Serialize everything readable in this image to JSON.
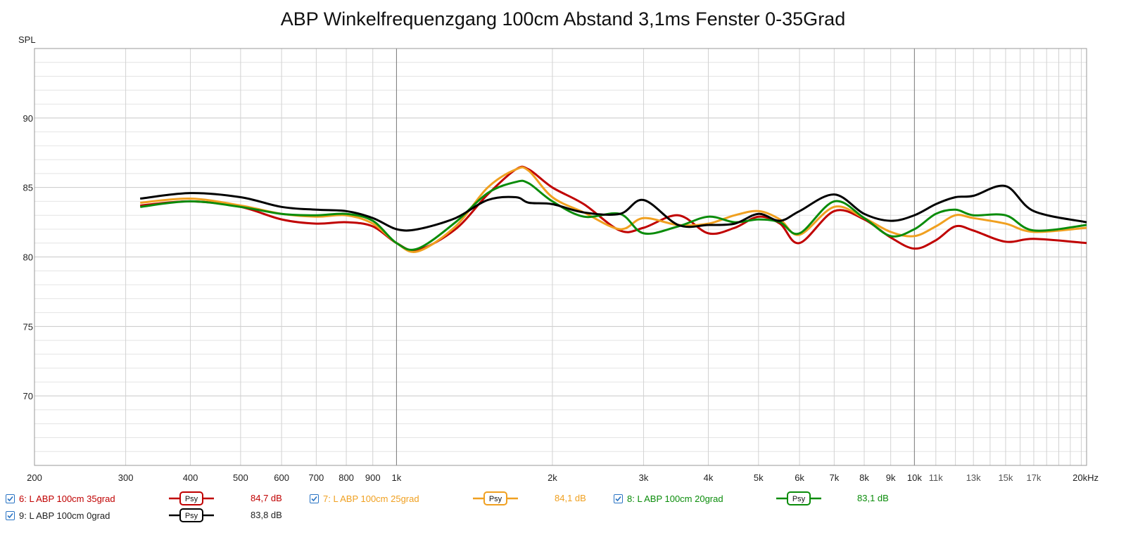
{
  "chart_data": {
    "type": "line",
    "title": "ABP Winkelfrequenzgang 100cm Abstand 3,1ms Fenster 0-35Grad",
    "ylabel": "SPL",
    "xlabel": "",
    "xscale": "log",
    "xlim": [
      200,
      21500
    ],
    "ylim": [
      65,
      95
    ],
    "y_ticks": [
      "70",
      "75",
      "80",
      "85",
      "90"
    ],
    "x_ticks": [
      {
        "label": "200",
        "value": 200
      },
      {
        "label": "300",
        "value": 300
      },
      {
        "label": "400",
        "value": 400
      },
      {
        "label": "500",
        "value": 500
      },
      {
        "label": "600",
        "value": 600
      },
      {
        "label": "700",
        "value": 700
      },
      {
        "label": "800",
        "value": 800
      },
      {
        "label": "900",
        "value": 900
      },
      {
        "label": "1k",
        "value": 1000
      },
      {
        "label": "2k",
        "value": 2000
      },
      {
        "label": "3k",
        "value": 3000
      },
      {
        "label": "4k",
        "value": 4000
      },
      {
        "label": "5k",
        "value": 5000
      },
      {
        "label": "6k",
        "value": 6000
      },
      {
        "label": "7k",
        "value": 7000
      },
      {
        "label": "8k",
        "value": 8000
      },
      {
        "label": "9k",
        "value": 9000
      },
      {
        "label": "10k",
        "value": 10000
      },
      {
        "label": "11k",
        "value": 11000
      },
      {
        "label": "13k",
        "value": 13000
      },
      {
        "label": "15k",
        "value": 15000
      },
      {
        "label": "17k",
        "value": 17000
      },
      {
        "label": "20kHz",
        "value": 20000
      }
    ],
    "grid": true,
    "series": [
      {
        "name": "6: L ABP 100cm 35grad",
        "color": "#c00000",
        "psy_label": "Psy",
        "value_label": "84,7 dB",
        "x": [
          320,
          400,
          500,
          600,
          700,
          800,
          900,
          1000,
          1100,
          1300,
          1500,
          1700,
          1800,
          2000,
          2300,
          2700,
          3000,
          3500,
          4000,
          4500,
          5000,
          5500,
          6000,
          7000,
          8000,
          9000,
          10000,
          11000,
          12000,
          13000,
          15000,
          17000,
          21500
        ],
        "y": [
          83.7,
          84.0,
          83.6,
          82.7,
          82.4,
          82.5,
          82.2,
          81.0,
          80.5,
          82.0,
          84.5,
          86.3,
          86.3,
          85.0,
          83.8,
          81.9,
          82.1,
          83.0,
          81.7,
          82.1,
          82.9,
          82.4,
          81.0,
          83.3,
          82.7,
          81.4,
          80.6,
          81.2,
          82.2,
          81.9,
          81.1,
          81.3,
          81.0
        ]
      },
      {
        "name": "7: L ABP 100cm 25grad",
        "color": "#f0a020",
        "psy_label": "Psy",
        "value_label": "84,1 dB",
        "x": [
          320,
          400,
          500,
          600,
          700,
          800,
          900,
          1000,
          1100,
          1300,
          1500,
          1700,
          1800,
          2000,
          2300,
          2700,
          3000,
          3500,
          4000,
          4500,
          5000,
          5500,
          6000,
          7000,
          8000,
          9000,
          10000,
          11000,
          12000,
          13000,
          15000,
          17000,
          21500
        ],
        "y": [
          83.9,
          84.2,
          83.7,
          83.1,
          82.9,
          83.0,
          82.4,
          81.0,
          80.4,
          82.2,
          85.0,
          86.3,
          86.2,
          84.3,
          83.2,
          82.0,
          82.8,
          82.3,
          82.4,
          83.0,
          83.3,
          82.7,
          81.6,
          83.6,
          82.8,
          81.8,
          81.5,
          82.2,
          83.0,
          82.8,
          82.4,
          81.8,
          82.1
        ]
      },
      {
        "name": "8: L ABP 100cm 20grad",
        "color": "#0a8c0a",
        "psy_label": "Psy",
        "value_label": "83,1 dB",
        "x": [
          320,
          400,
          500,
          600,
          700,
          800,
          900,
          1000,
          1100,
          1300,
          1500,
          1700,
          1800,
          2000,
          2300,
          2700,
          3000,
          3500,
          4000,
          4500,
          5000,
          5500,
          6000,
          7000,
          8000,
          9000,
          10000,
          11000,
          12000,
          13000,
          15000,
          17000,
          21500
        ],
        "y": [
          83.6,
          84.0,
          83.6,
          83.1,
          83.0,
          83.1,
          82.6,
          81.0,
          80.6,
          82.5,
          84.6,
          85.4,
          85.3,
          84.0,
          82.9,
          83.1,
          81.7,
          82.2,
          82.9,
          82.5,
          82.7,
          82.5,
          81.7,
          84.0,
          82.8,
          81.5,
          82.0,
          83.1,
          83.4,
          83.0,
          83.0,
          81.9,
          82.3
        ]
      },
      {
        "name": "9: L ABP 100cm 0grad",
        "color": "#000000",
        "psy_label": "Psy",
        "value_label": "83,8 dB",
        "x": [
          320,
          400,
          500,
          600,
          700,
          800,
          900,
          1000,
          1100,
          1300,
          1500,
          1700,
          1800,
          2000,
          2300,
          2700,
          3000,
          3500,
          4000,
          4500,
          5000,
          5500,
          6000,
          7000,
          8000,
          9000,
          10000,
          11000,
          12000,
          13000,
          15000,
          17000,
          21500
        ],
        "y": [
          84.2,
          84.6,
          84.3,
          83.6,
          83.4,
          83.3,
          82.8,
          82.0,
          82.0,
          82.8,
          84.1,
          84.3,
          83.9,
          83.8,
          83.2,
          83.1,
          84.1,
          82.3,
          82.3,
          82.4,
          83.1,
          82.6,
          83.3,
          84.5,
          83.1,
          82.6,
          83.0,
          83.8,
          84.3,
          84.4,
          85.1,
          83.3,
          82.5
        ]
      }
    ]
  }
}
